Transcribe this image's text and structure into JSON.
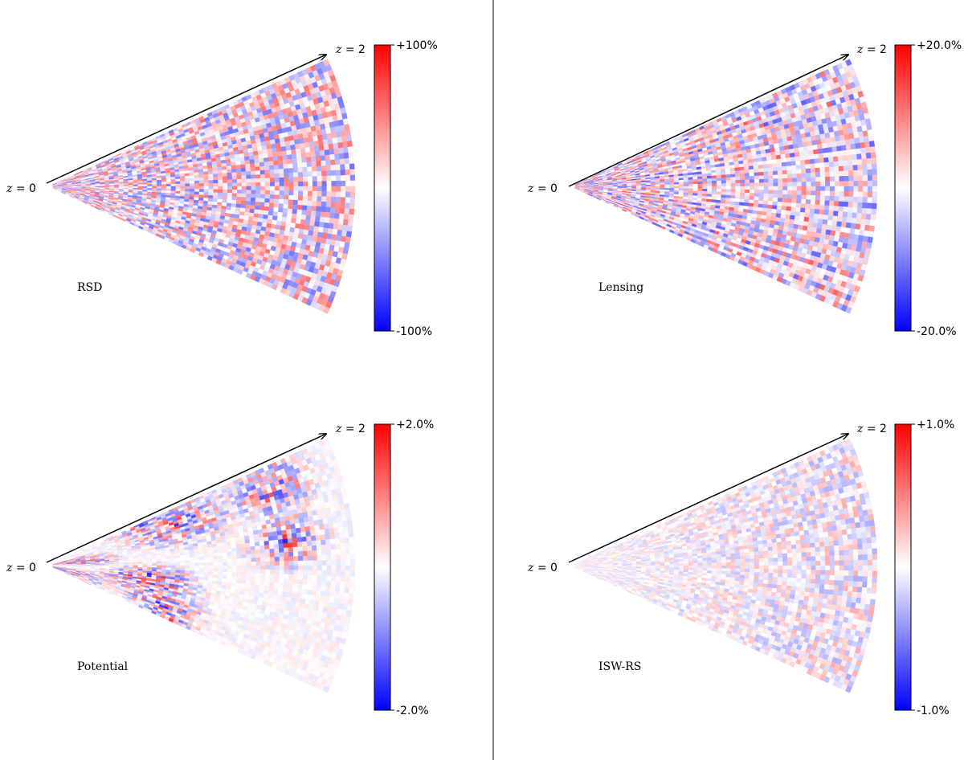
{
  "figure": {
    "divider": true
  },
  "chart_data": [
    {
      "type": "heatmap",
      "projection": "wedge",
      "label": "RSD",
      "axis": {
        "start_label": "0",
        "end_label": "2"
      },
      "colorbar": {
        "max_label": "+100%",
        "min_label": "-100%",
        "colormap": "bwr"
      },
      "texture": {
        "kind": "fine-noise",
        "amplitude": 0.55,
        "seed": 11
      }
    },
    {
      "type": "heatmap",
      "projection": "wedge",
      "label": "Lensing",
      "axis": {
        "start_label": "0",
        "end_label": "2"
      },
      "colorbar": {
        "max_label": "+20.0%",
        "min_label": "-20.0%",
        "colormap": "bwr"
      },
      "texture": {
        "kind": "radial-streaks",
        "amplitude": 0.75,
        "seed": 23
      }
    },
    {
      "type": "heatmap",
      "projection": "wedge",
      "label": "Potential",
      "axis": {
        "start_label": "0",
        "end_label": "2"
      },
      "colorbar": {
        "max_label": "+2.0%",
        "min_label": "-2.0%",
        "colormap": "bwr"
      },
      "texture": {
        "kind": "blobs",
        "amplitude": 0.85,
        "seed": 37
      }
    },
    {
      "type": "heatmap",
      "projection": "wedge",
      "label": "ISW-RS",
      "axis": {
        "start_label": "0",
        "end_label": "2"
      },
      "colorbar": {
        "max_label": "+1.0%",
        "min_label": "-1.0%",
        "colormap": "bwr"
      },
      "texture": {
        "kind": "faint-noise",
        "amplitude": 0.35,
        "seed": 53
      }
    }
  ]
}
